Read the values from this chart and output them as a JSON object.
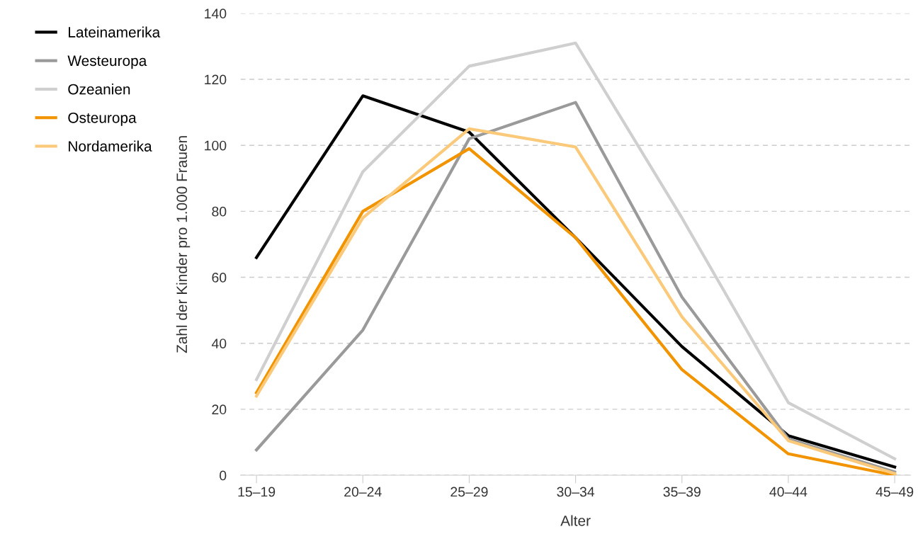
{
  "chart_data": {
    "type": "line",
    "xlabel": "Alter",
    "ylabel": "Zahl der Kinder pro 1.000 Frauen",
    "categories": [
      "15–19",
      "20–24",
      "25–29",
      "30–34",
      "35–39",
      "40–44",
      "45–49"
    ],
    "series": [
      {
        "name": "Lateinamerika",
        "color": "#000000",
        "values": [
          66,
          115,
          104,
          72,
          39,
          12,
          2.5
        ]
      },
      {
        "name": "Westeuropa",
        "color": "#9a9a9a",
        "values": [
          7.7,
          44,
          102,
          113,
          54,
          11,
          1
        ]
      },
      {
        "name": "Ozeanien",
        "color": "#cfcfcf",
        "values": [
          29,
          92,
          124,
          131,
          78,
          22,
          5
        ]
      },
      {
        "name": "Osteuropa",
        "color": "#f29400",
        "values": [
          25,
          80,
          99,
          72,
          32,
          6.5,
          0
        ]
      },
      {
        "name": "Nordamerika",
        "color": "#fbc97a",
        "values": [
          24,
          78,
          105,
          99.5,
          48,
          10.5,
          0.5
        ]
      }
    ],
    "ylim": [
      0,
      140
    ],
    "yticks": [
      0,
      20,
      40,
      60,
      80,
      100,
      120,
      140
    ],
    "grid": "y",
    "legend": "left",
    "marker": "none",
    "line_style": "solid"
  }
}
